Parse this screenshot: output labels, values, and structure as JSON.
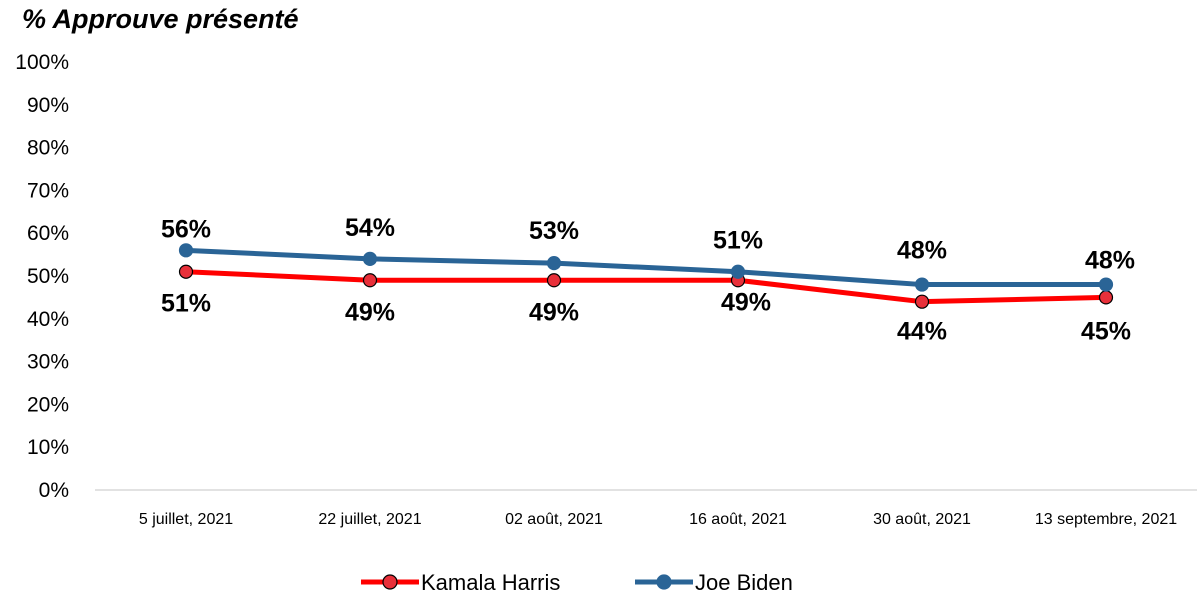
{
  "chart_data": {
    "type": "line",
    "title": "% Approuve présenté",
    "xlabel": "",
    "ylabel": "",
    "ylim": [
      0,
      100
    ],
    "yticks": [
      0,
      10,
      20,
      30,
      40,
      50,
      60,
      70,
      80,
      90,
      100
    ],
    "y_tick_suffix": "%",
    "grid": false,
    "legend_position": "bottom",
    "categories": [
      "5 juillet, 2021",
      "22 juillet, 2021",
      "02 août, 2021",
      "16 août, 2021",
      "30 août, 2021",
      "13 septembre, 2021"
    ],
    "series": [
      {
        "name": "Kamala Harris",
        "values": [
          51,
          49,
          49,
          49,
          44,
          45
        ],
        "labels": [
          "51%",
          "49%",
          "49%",
          "49%",
          "44%",
          "45%"
        ],
        "color": "#ff0000",
        "marker_color": "#e8303a",
        "label_position": "below"
      },
      {
        "name": "Joe Biden",
        "values": [
          56,
          54,
          53,
          51,
          48,
          48
        ],
        "labels": [
          "56%",
          "54%",
          "53%",
          "51%",
          "48%",
          "48%"
        ],
        "color": "#2a6496",
        "marker_color": "#2a6496",
        "label_position": "above"
      }
    ]
  }
}
